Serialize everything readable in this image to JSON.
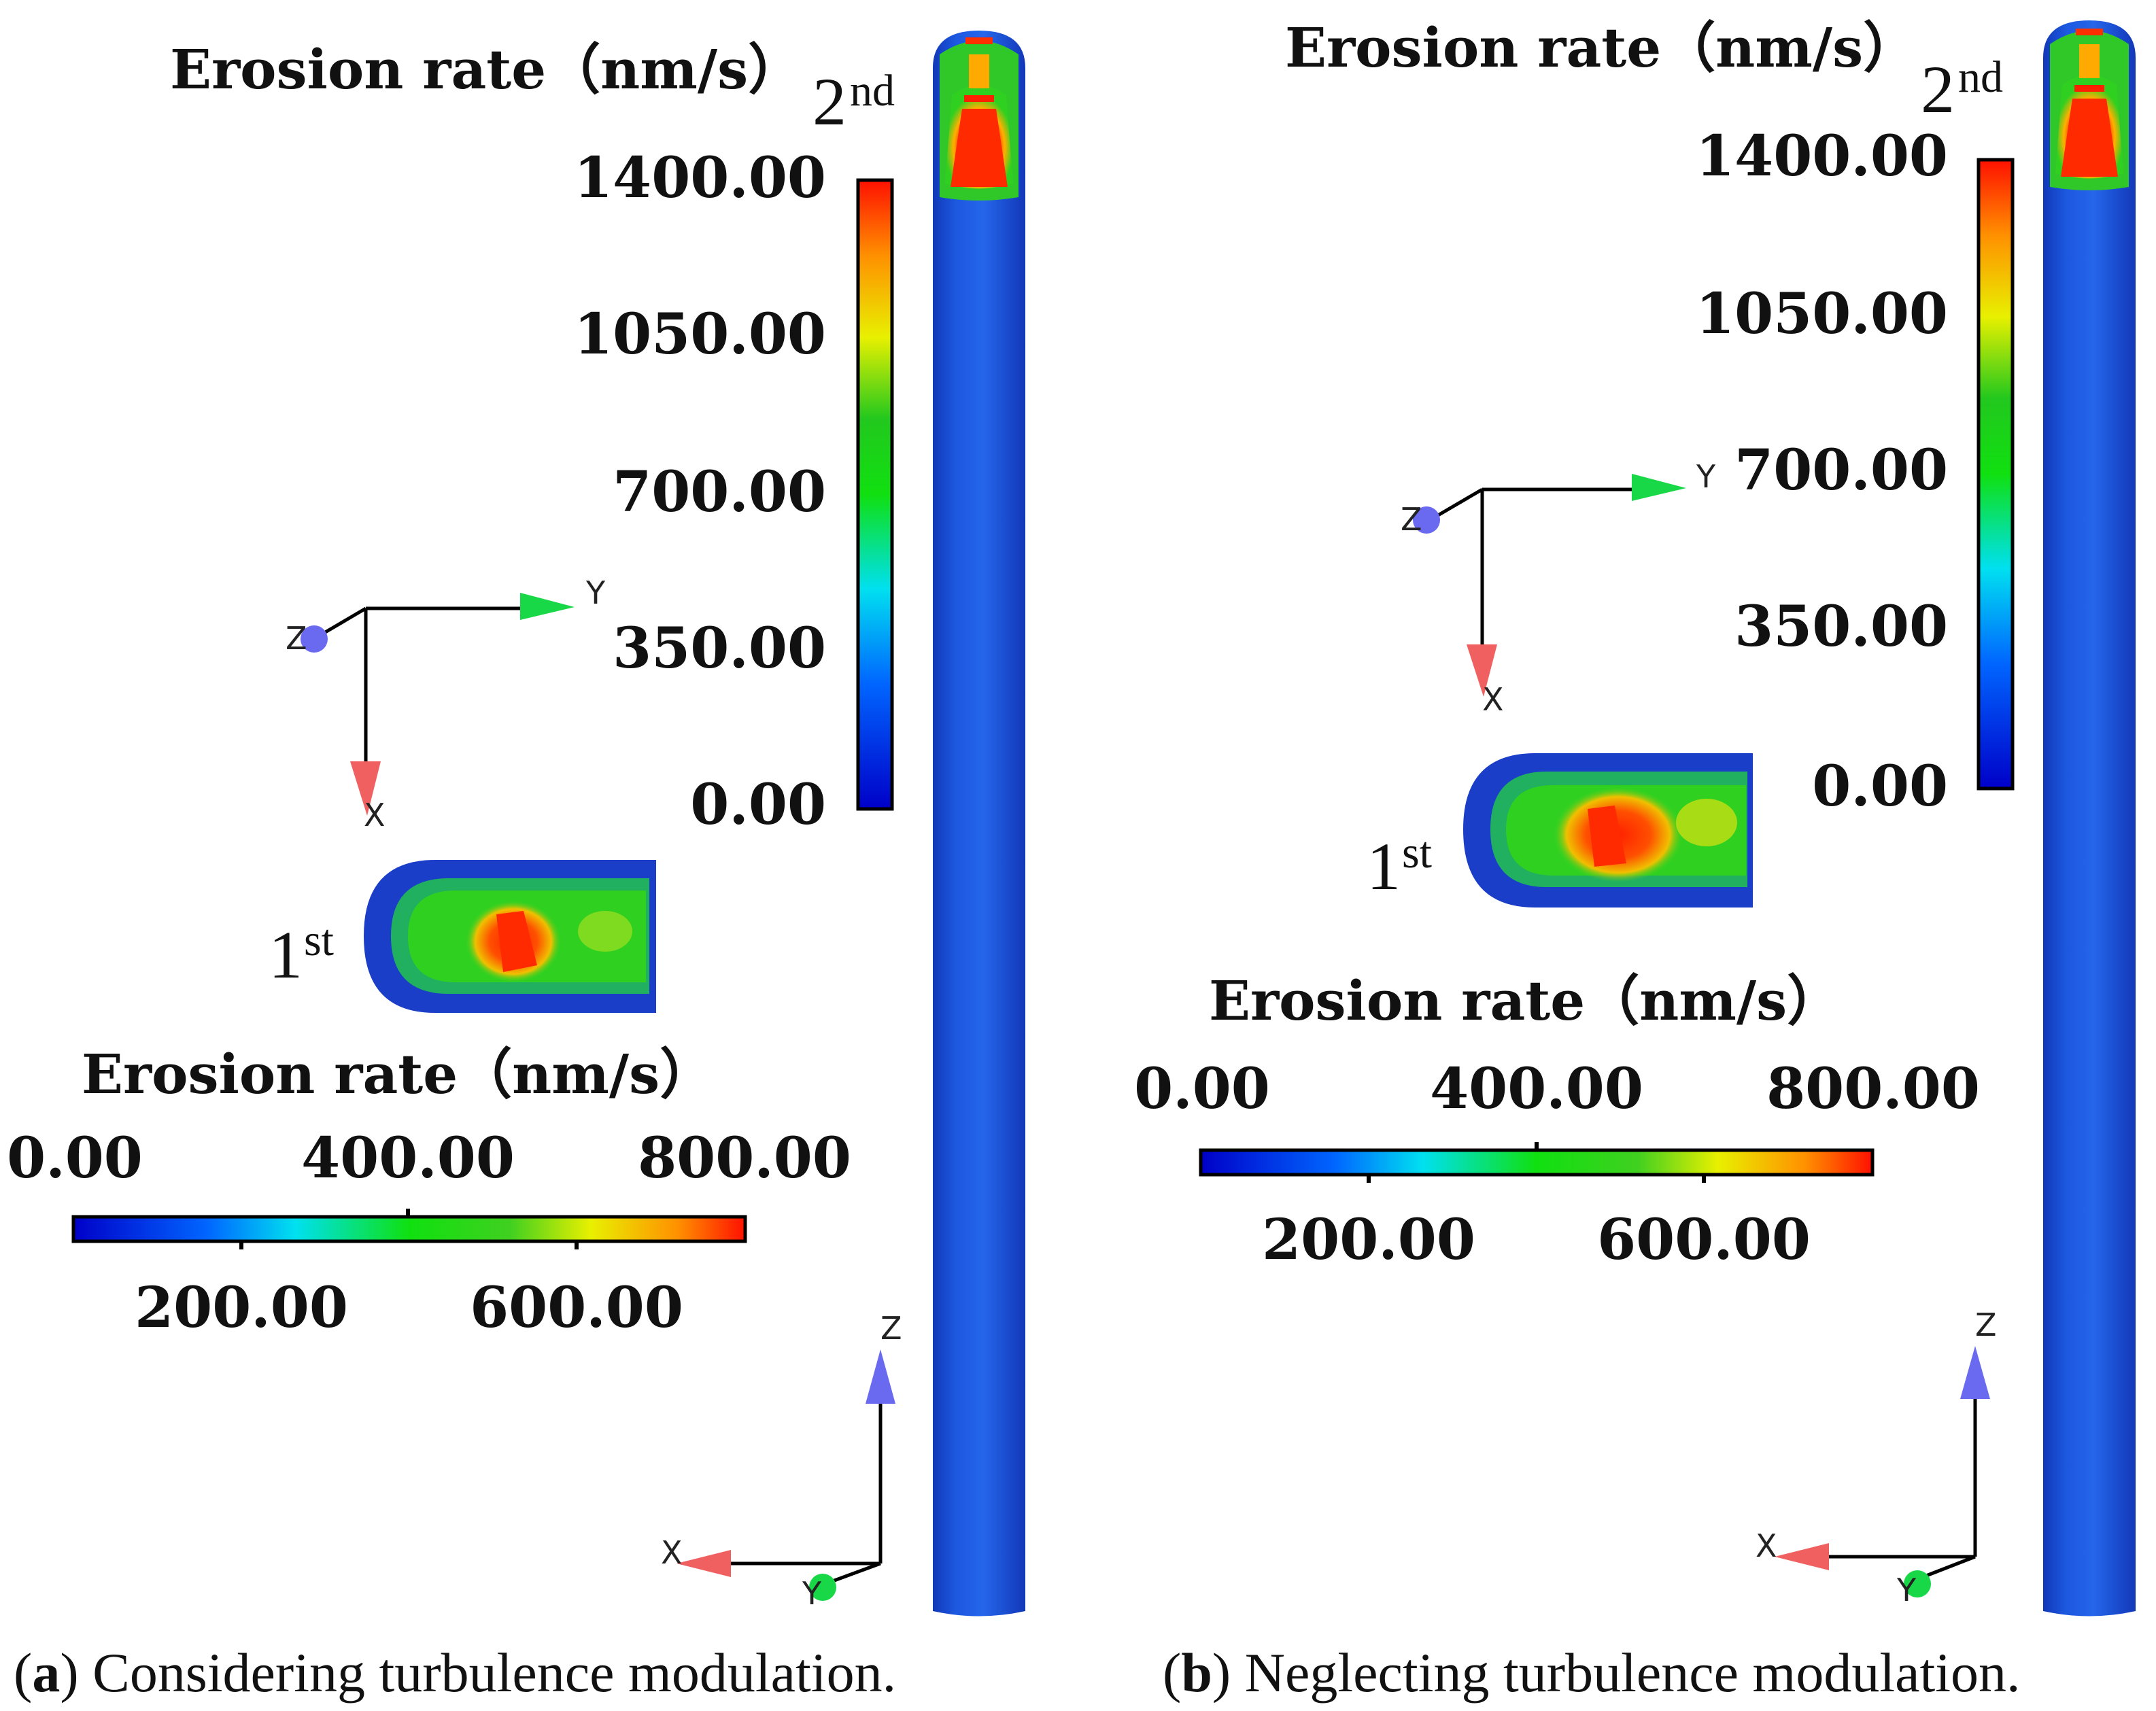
{
  "colors": {
    "pipe_blue": "#1a4fd6",
    "erosion_high": "#ff2200",
    "erosion_mid": "#22c01e",
    "axis_x": "#f06060",
    "axis_y": "#18d848",
    "axis_z": "#6a6af0"
  },
  "panels": [
    {
      "id": "a",
      "caption_letter": "a",
      "caption_text": ") Considering turbulence modulation.",
      "vertical_legend": {
        "title": "Erosion rate（nm/s）",
        "ticks": [
          "1400.00",
          "1050.00",
          "700.00",
          "350.00",
          "0.00"
        ]
      },
      "horizontal_legend": {
        "title": "Erosion rate（nm/s）",
        "top_ticks": [
          "0.00",
          "400.00",
          "800.00"
        ],
        "bottom_ticks": [
          "200.00",
          "600.00"
        ]
      },
      "elbow_labels": {
        "second": "2",
        "second_sup": "nd",
        "first": "1",
        "first_sup": "st"
      },
      "axes_top": {
        "x": "X",
        "y": "Y",
        "z": "Z"
      },
      "axes_bottom": {
        "x": "X",
        "y": "Y",
        "z": "Z"
      }
    },
    {
      "id": "b",
      "caption_letter": "b",
      "caption_text": ") Neglecting turbulence modulation.",
      "vertical_legend": {
        "title": "Erosion rate（nm/s）",
        "ticks": [
          "1400.00",
          "1050.00",
          "700.00",
          "350.00",
          "0.00"
        ]
      },
      "horizontal_legend": {
        "title": "Erosion rate（nm/s）",
        "top_ticks": [
          "0.00",
          "400.00",
          "800.00"
        ],
        "bottom_ticks": [
          "200.00",
          "600.00"
        ]
      },
      "elbow_labels": {
        "second": "2",
        "second_sup": "nd",
        "first": "1",
        "first_sup": "st"
      },
      "axes_top": {
        "x": "X",
        "y": "Y",
        "z": "Z"
      },
      "axes_bottom": {
        "x": "X",
        "y": "Y",
        "z": "Z"
      }
    }
  ]
}
